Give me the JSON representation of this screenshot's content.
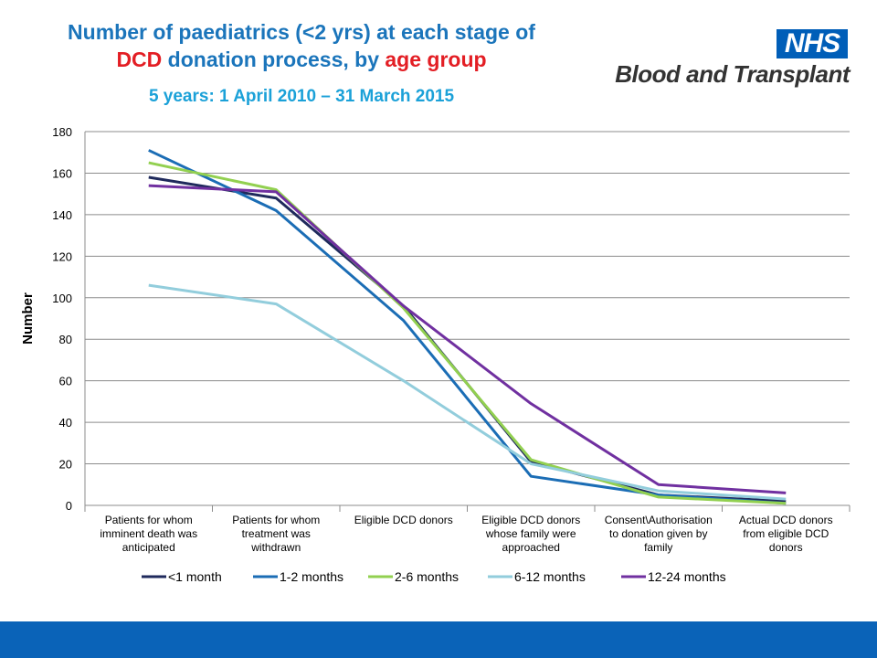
{
  "header": {
    "title_part1": "Number of paediatrics (<2 yrs) at each stage of",
    "title_part2_red1": "DCD",
    "title_part2_mid": " donation process, by ",
    "title_part2_red2": "age group",
    "subtitle": "5 years: 1 April 2010 – 31 March 2015"
  },
  "logo": {
    "badge": "NHS",
    "text": "Blood and Transplant",
    "badge_color": "#005eb8"
  },
  "chart_data": {
    "type": "line",
    "ylabel": "Number",
    "xlabel": "",
    "ylim": [
      0,
      180
    ],
    "yticks": [
      0,
      20,
      40,
      60,
      80,
      100,
      120,
      140,
      160,
      180
    ],
    "grid": true,
    "legend_position": "bottom",
    "categories": [
      [
        "Patients for whom",
        "imminent death was",
        "anticipated"
      ],
      [
        "Patients for whom",
        "treatment was",
        "withdrawn"
      ],
      [
        "Eligible DCD donors"
      ],
      [
        "Eligible DCD donors",
        "whose family were",
        "approached"
      ],
      [
        "Consent\\Authorisation",
        "to donation given by",
        "family"
      ],
      [
        "Actual DCD donors",
        "from eligible DCD",
        "donors"
      ]
    ],
    "series": [
      {
        "name": "<1 month",
        "color": "#1f2a5c",
        "values": [
          158,
          148,
          96,
          21,
          5,
          2
        ]
      },
      {
        "name": "1-2 months",
        "color": "#1b6db5",
        "values": [
          171,
          142,
          89,
          14,
          5,
          1
        ]
      },
      {
        "name": "2-6 months",
        "color": "#92d050",
        "values": [
          165,
          152,
          95,
          22,
          4,
          1
        ]
      },
      {
        "name": "6-12 months",
        "color": "#92cddc",
        "values": [
          106,
          97,
          60,
          20,
          7,
          3
        ]
      },
      {
        "name": "12-24 months",
        "color": "#7030a0",
        "values": [
          154,
          151,
          96,
          49,
          10,
          6
        ]
      }
    ]
  }
}
